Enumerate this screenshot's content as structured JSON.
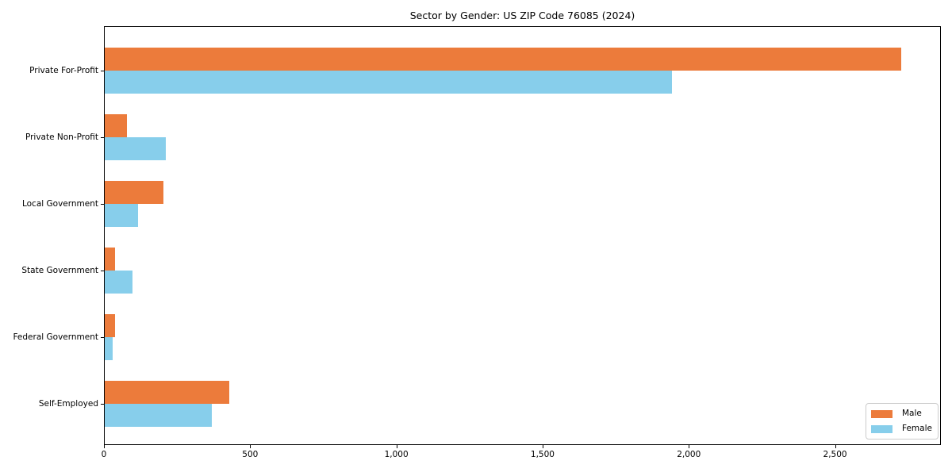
{
  "title": "Sector by Gender: US ZIP Code 76085 (2024)",
  "colors": {
    "male": "#EC7B3B",
    "female": "#87CEEB",
    "axis": "#000000",
    "legend_border": "#cccccc",
    "background": "#ffffff"
  },
  "chart_data": {
    "type": "bar",
    "orientation": "horizontal",
    "title": "Sector by Gender: US ZIP Code 76085 (2024)",
    "categories": [
      "Private For-Profit",
      "Private Non-Profit",
      "Local Government",
      "State Government",
      "Federal Government",
      "Self-Employed"
    ],
    "series": [
      {
        "name": "Male",
        "color": "#EC7B3B",
        "values": [
          2725,
          75,
          200,
          35,
          34,
          427
        ]
      },
      {
        "name": "Female",
        "color": "#87CEEB",
        "values": [
          1940,
          210,
          115,
          95,
          27,
          366
        ]
      }
    ],
    "xlabel": "",
    "ylabel": "",
    "xlim": [
      0,
      2862
    ],
    "xticks": [
      0,
      500,
      1000,
      1500,
      2000,
      2500
    ],
    "xtick_labels": [
      "0",
      "500",
      "1,000",
      "1,500",
      "2,000",
      "2,500"
    ],
    "grid": false,
    "legend_position": "lower right"
  }
}
